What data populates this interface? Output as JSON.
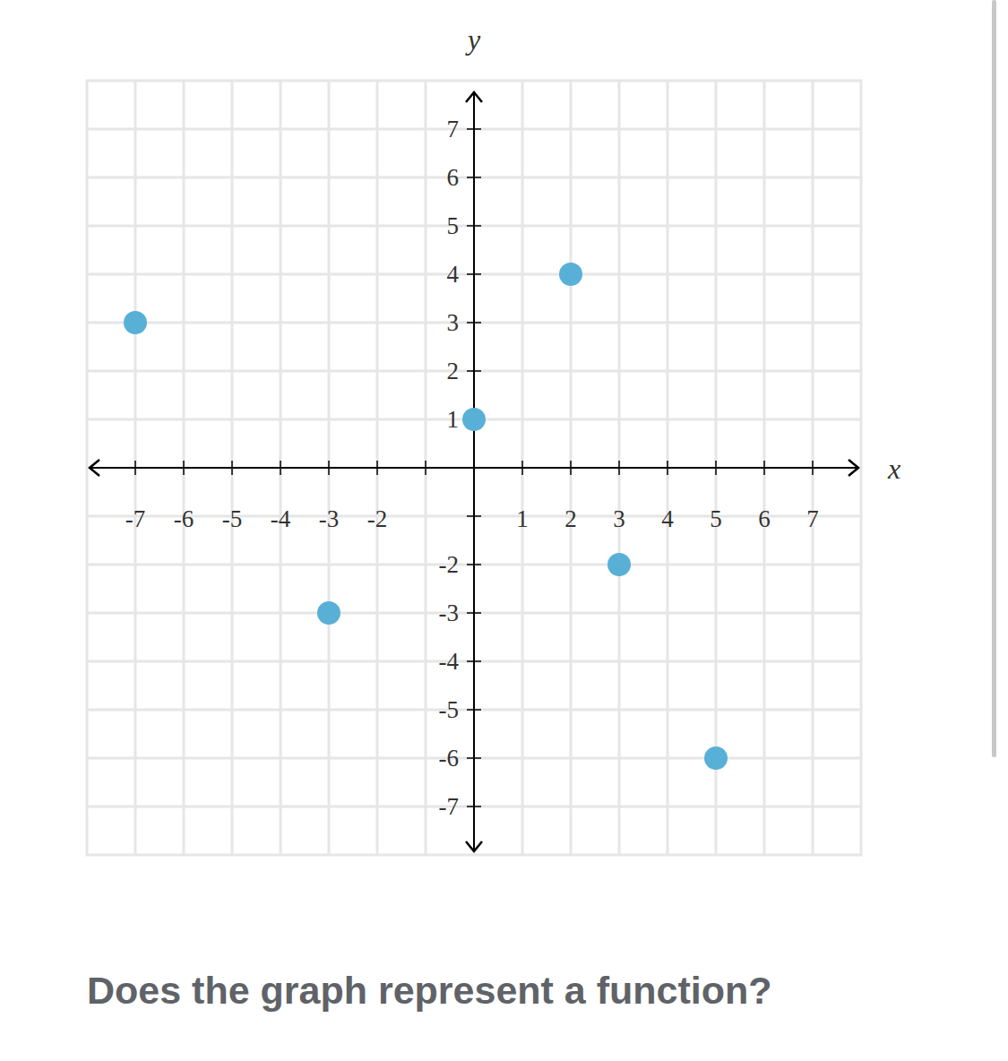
{
  "chart_data": {
    "type": "scatter",
    "x": [
      -7,
      -3,
      0,
      2,
      3,
      5
    ],
    "values": [
      3,
      -3,
      1,
      4,
      -2,
      -6
    ],
    "color": "#59b0d6",
    "marker": "circle",
    "xlabel": "x",
    "ylabel": "y",
    "xlim": [
      -8,
      8
    ],
    "ylim": [
      -8,
      8
    ],
    "xticks": [
      -7,
      -6,
      -5,
      -4,
      -3,
      -2,
      {
        "value": -1,
        "label": null
      },
      1,
      2,
      3,
      4,
      5,
      6,
      7
    ],
    "yticks": [
      -7,
      -6,
      -5,
      -4,
      -3,
      -2,
      {
        "value": -1,
        "label": null
      },
      1,
      2,
      3,
      4,
      5,
      6,
      7
    ],
    "grid": true,
    "annotations": [
      "Does the graph represent a function?"
    ]
  }
}
